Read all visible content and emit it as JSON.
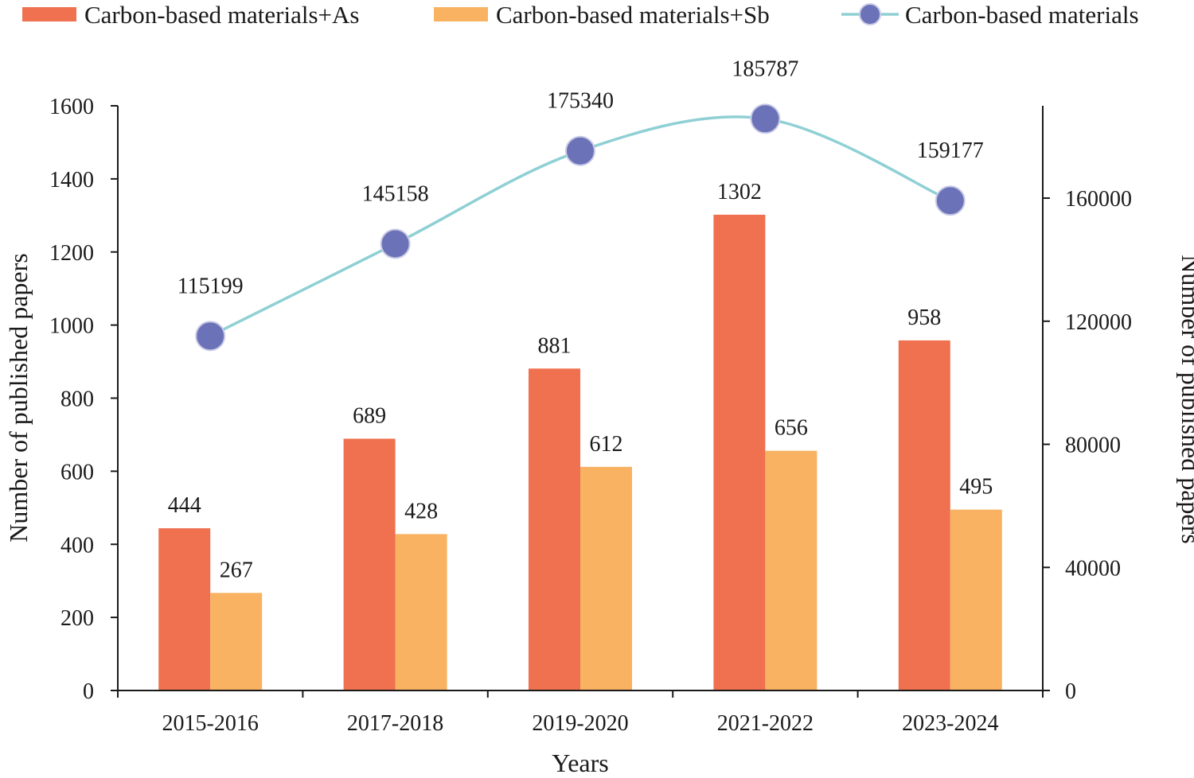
{
  "chart_data": {
    "type": "bar",
    "categories": [
      "2015-2016",
      "2017-2018",
      "2019-2020",
      "2021-2022",
      "2023-2024"
    ],
    "xlabel": "Years",
    "ylabel_left": "Number of published papers",
    "ylabel_right": "Number of published papers",
    "ylim_left": [
      0,
      1600
    ],
    "yticks_left": [
      0,
      200,
      400,
      600,
      800,
      1000,
      1200,
      1400,
      1600
    ],
    "ylim_right": [
      0,
      190000
    ],
    "yticks_right": [
      0,
      40000,
      80000,
      120000,
      160000
    ],
    "grid": false,
    "legend_position": "top",
    "series": [
      {
        "name": "Carbon-based materials+As",
        "type": "bar",
        "axis": "left",
        "color": "#ef7150",
        "values": [
          444,
          689,
          881,
          1302,
          958
        ]
      },
      {
        "name": "Carbon-based materials+Sb",
        "type": "bar",
        "axis": "left",
        "color": "#f8b262",
        "values": [
          267,
          428,
          612,
          656,
          495
        ]
      },
      {
        "name": "Carbon-based materials",
        "type": "line",
        "axis": "right",
        "color": "#8fd0d4",
        "marker_color": "#6b72b8",
        "values": [
          115199,
          145158,
          175340,
          185787,
          159177
        ]
      }
    ]
  }
}
